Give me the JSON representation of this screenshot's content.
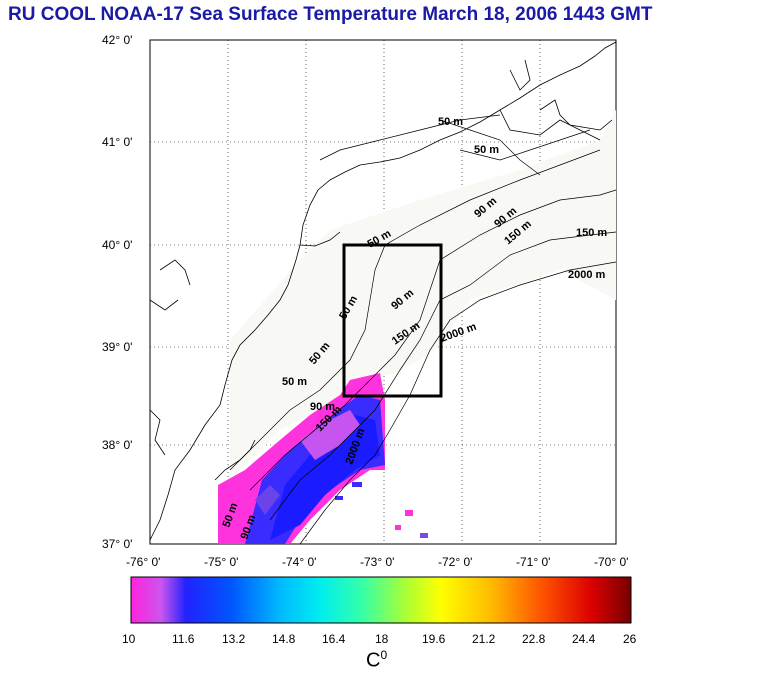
{
  "title": "RU COOL  NOAA-17 Sea Surface Temperature March 18, 2006 1443 GMT",
  "latitude_labels": [
    "42° 0'",
    "41° 0'",
    "40° 0'",
    "39° 0'",
    "38° 0'",
    "37° 0'"
  ],
  "longitude_labels": [
    "-76° 0'",
    "-75° 0'",
    "-74° 0'",
    "-73° 0'",
    "-72° 0'",
    "-71° 0'",
    "-70° 0'"
  ],
  "contour_labels": [
    "50 m",
    "50 m",
    "50 m",
    "50 m",
    "90 m",
    "90 m",
    "90 m",
    "150 m",
    "150 m",
    "2000 m",
    "2000 m",
    "150 m",
    "50 m",
    "50 m",
    "90 m",
    "150 m",
    "2000 m",
    "50 m",
    "90 m"
  ],
  "colorbar": {
    "ticks": [
      "10",
      "11.6",
      "13.2",
      "14.8",
      "16.4",
      "18",
      "19.6",
      "21.2",
      "22.8",
      "24.4",
      "26"
    ],
    "units": "C",
    "units_sup": "0",
    "colors": [
      "#ff22cc",
      "#cc44dd",
      "#7a4be0",
      "#1a1af0",
      "#0066ff",
      "#00bbff",
      "#00eeee",
      "#33ffaa",
      "#99ff33",
      "#ffff00",
      "#ffcc00",
      "#ff8800",
      "#ff3300",
      "#cc0000",
      "#7a0000"
    ]
  },
  "box_region": "study area"
}
